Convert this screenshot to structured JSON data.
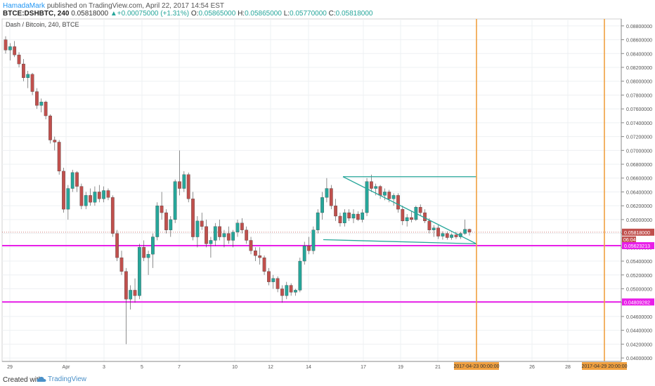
{
  "header": {
    "author": "HamadaMark",
    "published_text": "published on TradingView.com, April 22, 2017 14:54 EST",
    "symbol": "BTCE:DSHBTC, 240",
    "last_price": "0.05818000",
    "change": "+0.00075000 (+1.31%)",
    "o_label": "O:",
    "o_value": "0.05865000",
    "h_label": "H:",
    "h_value": "0.05865000",
    "l_label": "L:",
    "l_value": "0.05770000",
    "c_label": "C:",
    "c_value": "0.05818000"
  },
  "footer": {
    "created_with": "Created with",
    "brand": "TradingView"
  },
  "colors": {
    "up_candle": "#26a69a",
    "down_candle": "#c0504d",
    "magenta": "#e81fe8",
    "orange": "#f0a040",
    "trendline": "#26a69a"
  },
  "chart_data": {
    "type": "candlestick",
    "title": "Dash / Bitcoin, 240, BTCE",
    "y_axis_ticks": [
      "0.06800000",
      "0.06600000",
      "0.06400000",
      "0.06200000",
      "0.06000000",
      "0.05800000",
      "0.05600000",
      "0.05400000",
      "0.05200000",
      "0.05000000",
      "0.04800000",
      "0.04600000",
      "0.04400000",
      "0.04200000",
      "0.04000000",
      "0.03800000",
      "0.03600000",
      "0.03400000",
      "0.03200000",
      "0.03000000",
      "0.02800000",
      "0.02600000",
      "0.02400000",
      "0.02200000",
      "0.02000000",
      "0.01800000",
      "0.01600000",
      "0.01400000",
      "0.01200000",
      "0.01000000",
      "0.00800000",
      "0.00600000",
      "0.00400000",
      "0.00200000",
      "0.00000000"
    ],
    "y_tick_labels_shown": [
      "0.08800000",
      "0.08600000",
      "0.08400000",
      "0.08200000",
      "0.08000000",
      "0.07800000",
      "0.07600000",
      "0.07400000",
      "0.07200000",
      "0.07000000",
      "0.06800000",
      "0.06600000",
      "0.06400000",
      "0.06200000",
      "0.06000000",
      "0.05800000",
      "0.05600000",
      "0.05400000",
      "0.05200000",
      "0.05000000",
      "0.04800000",
      "0.04600000",
      "0.04400000",
      "0.04200000",
      "0.04000000"
    ],
    "ylim": [
      0.0395,
      0.089
    ],
    "x_tick_labels": [
      "29",
      "Apr",
      "3",
      "5",
      "7",
      "10",
      "12",
      "14",
      "17",
      "19",
      "21",
      "2017-04-23 00:00:00",
      "26",
      "28",
      "2017-04-29 20:00:00"
    ],
    "price_labels": [
      {
        "value": "0.05818000",
        "sub": "06:04",
        "color": "#c0504d"
      },
      {
        "value": "0.05623213",
        "color": "#e81fe8"
      },
      {
        "value": "0.04809282",
        "color": "#e81fe8"
      }
    ],
    "horizontal_levels": [
      0.05623213,
      0.04809282
    ],
    "current_price": 0.05818,
    "vertical_markers": [
      "2017-04-23 00:00:00",
      "2017-04-29 20:00:00"
    ],
    "triangle": {
      "top": [
        [
          0,
          0.0662
        ],
        [
          1,
          0.0662
        ]
      ],
      "desc": [
        [
          0,
          0.0662
        ],
        [
          1,
          0.0565
        ]
      ],
      "bottom": [
        [
          0,
          0.0571
        ],
        [
          1,
          0.0565
        ]
      ]
    },
    "candles": [
      [
        0.086,
        0.0865,
        0.084,
        0.0845
      ],
      [
        0.0845,
        0.0855,
        0.083,
        0.085
      ],
      [
        0.085,
        0.0858,
        0.0835,
        0.0838
      ],
      [
        0.0838,
        0.0842,
        0.082,
        0.0825
      ],
      [
        0.0825,
        0.0832,
        0.08,
        0.0805
      ],
      [
        0.0805,
        0.0815,
        0.079,
        0.081
      ],
      [
        0.081,
        0.0812,
        0.078,
        0.0785
      ],
      [
        0.0785,
        0.079,
        0.076,
        0.0765
      ],
      [
        0.0765,
        0.0775,
        0.0755,
        0.077
      ],
      [
        0.077,
        0.0772,
        0.0745,
        0.075
      ],
      [
        0.075,
        0.0752,
        0.071,
        0.0715
      ],
      [
        0.0715,
        0.072,
        0.07,
        0.0712
      ],
      [
        0.0712,
        0.0715,
        0.0665,
        0.067
      ],
      [
        0.067,
        0.0675,
        0.061,
        0.0615
      ],
      [
        0.0615,
        0.065,
        0.06,
        0.0645
      ],
      [
        0.0645,
        0.0672,
        0.064,
        0.0668
      ],
      [
        0.0668,
        0.067,
        0.064,
        0.0648
      ],
      [
        0.0648,
        0.0652,
        0.0615,
        0.062
      ],
      [
        0.062,
        0.064,
        0.0615,
        0.0635
      ],
      [
        0.0635,
        0.0645,
        0.062,
        0.0625
      ],
      [
        0.0625,
        0.0648,
        0.062,
        0.064
      ],
      [
        0.064,
        0.065,
        0.0625,
        0.063
      ],
      [
        0.063,
        0.0648,
        0.0625,
        0.0642
      ],
      [
        0.0642,
        0.0645,
        0.0628,
        0.0632
      ],
      [
        0.0632,
        0.0635,
        0.0575,
        0.058
      ],
      [
        0.058,
        0.0585,
        0.054,
        0.0545
      ],
      [
        0.0545,
        0.0555,
        0.052,
        0.0525
      ],
      [
        0.0525,
        0.053,
        0.042,
        0.0485
      ],
      [
        0.0485,
        0.0505,
        0.047,
        0.0498
      ],
      [
        0.0498,
        0.0515,
        0.048,
        0.049
      ],
      [
        0.049,
        0.0565,
        0.0485,
        0.056
      ],
      [
        0.056,
        0.057,
        0.054,
        0.0545
      ],
      [
        0.0545,
        0.0555,
        0.052,
        0.055
      ],
      [
        0.055,
        0.058,
        0.053,
        0.0575
      ],
      [
        0.0575,
        0.0625,
        0.057,
        0.062
      ],
      [
        0.062,
        0.064,
        0.06,
        0.061
      ],
      [
        0.061,
        0.0615,
        0.058,
        0.0585
      ],
      [
        0.0585,
        0.0605,
        0.0575,
        0.06
      ],
      [
        0.06,
        0.0658,
        0.0595,
        0.0655
      ],
      [
        0.0655,
        0.07,
        0.0635,
        0.0645
      ],
      [
        0.0645,
        0.067,
        0.064,
        0.0665
      ],
      [
        0.0665,
        0.0668,
        0.0625,
        0.063
      ],
      [
        0.063,
        0.064,
        0.057,
        0.0575
      ],
      [
        0.0575,
        0.0605,
        0.056,
        0.0598
      ],
      [
        0.0598,
        0.061,
        0.0585,
        0.059
      ],
      [
        0.059,
        0.06,
        0.056,
        0.0565
      ],
      [
        0.0565,
        0.0575,
        0.0545,
        0.057
      ],
      [
        0.057,
        0.0595,
        0.0562,
        0.059
      ],
      [
        0.059,
        0.06,
        0.057,
        0.0575
      ],
      [
        0.0575,
        0.0585,
        0.056,
        0.058
      ],
      [
        0.058,
        0.059,
        0.0565,
        0.057
      ],
      [
        0.057,
        0.0585,
        0.056,
        0.0582
      ],
      [
        0.0582,
        0.06,
        0.0575,
        0.0595
      ],
      [
        0.0595,
        0.0602,
        0.058,
        0.0585
      ],
      [
        0.0585,
        0.059,
        0.0565,
        0.057
      ],
      [
        0.057,
        0.0575,
        0.055,
        0.0555
      ],
      [
        0.0555,
        0.056,
        0.054,
        0.0548
      ],
      [
        0.0548,
        0.056,
        0.0535,
        0.0545
      ],
      [
        0.0545,
        0.0548,
        0.052,
        0.0525
      ],
      [
        0.0525,
        0.053,
        0.0505,
        0.051
      ],
      [
        0.051,
        0.052,
        0.05,
        0.0515
      ],
      [
        0.0515,
        0.0518,
        0.0495,
        0.05
      ],
      [
        0.05,
        0.0505,
        0.048,
        0.049
      ],
      [
        0.049,
        0.051,
        0.0485,
        0.0505
      ],
      [
        0.0505,
        0.0508,
        0.049,
        0.0495
      ],
      [
        0.0495,
        0.05,
        0.049,
        0.0498
      ],
      [
        0.0498,
        0.0545,
        0.0495,
        0.054
      ],
      [
        0.054,
        0.0568,
        0.0535,
        0.0562
      ],
      [
        0.0562,
        0.0575,
        0.055,
        0.0555
      ],
      [
        0.0555,
        0.059,
        0.055,
        0.0585
      ],
      [
        0.0585,
        0.0615,
        0.058,
        0.061
      ],
      [
        0.061,
        0.064,
        0.06,
        0.0632
      ],
      [
        0.0632,
        0.066,
        0.0625,
        0.0645
      ],
      [
        0.0645,
        0.065,
        0.0615,
        0.062
      ],
      [
        0.062,
        0.063,
        0.0598,
        0.0605
      ],
      [
        0.0605,
        0.061,
        0.059,
        0.0595
      ],
      [
        0.0595,
        0.0615,
        0.059,
        0.061
      ],
      [
        0.061,
        0.0615,
        0.0598,
        0.0602
      ],
      [
        0.0602,
        0.0615,
        0.0595,
        0.0608
      ],
      [
        0.0608,
        0.0612,
        0.0598,
        0.06
      ],
      [
        0.06,
        0.0615,
        0.0596,
        0.061
      ],
      [
        0.061,
        0.066,
        0.0605,
        0.0655
      ],
      [
        0.0655,
        0.0665,
        0.064,
        0.0645
      ],
      [
        0.0645,
        0.0652,
        0.0635,
        0.0648
      ],
      [
        0.0648,
        0.065,
        0.063,
        0.0635
      ],
      [
        0.0635,
        0.0645,
        0.0628,
        0.064
      ],
      [
        0.064,
        0.0643,
        0.0625,
        0.063
      ],
      [
        0.063,
        0.0638,
        0.062,
        0.0635
      ],
      [
        0.0635,
        0.0638,
        0.061,
        0.0615
      ],
      [
        0.0615,
        0.062,
        0.0592,
        0.0598
      ],
      [
        0.0598,
        0.0608,
        0.059,
        0.0603
      ],
      [
        0.0603,
        0.0612,
        0.0596,
        0.06
      ],
      [
        0.06,
        0.062,
        0.0598,
        0.0618
      ],
      [
        0.0618,
        0.0622,
        0.0605,
        0.061
      ],
      [
        0.061,
        0.0615,
        0.0595,
        0.0598
      ],
      [
        0.0598,
        0.0602,
        0.058,
        0.0585
      ],
      [
        0.0585,
        0.0592,
        0.0575,
        0.0588
      ],
      [
        0.0588,
        0.0592,
        0.0572,
        0.0576
      ],
      [
        0.0576,
        0.0583,
        0.0571,
        0.058
      ],
      [
        0.058,
        0.0583,
        0.0571,
        0.0574
      ],
      [
        0.0574,
        0.058,
        0.0571,
        0.0578
      ],
      [
        0.0578,
        0.0582,
        0.0572,
        0.0575
      ],
      [
        0.0575,
        0.0582,
        0.0572,
        0.058
      ],
      [
        0.058,
        0.06,
        0.0578,
        0.0586
      ],
      [
        0.0586,
        0.0587,
        0.0577,
        0.0582
      ]
    ]
  }
}
